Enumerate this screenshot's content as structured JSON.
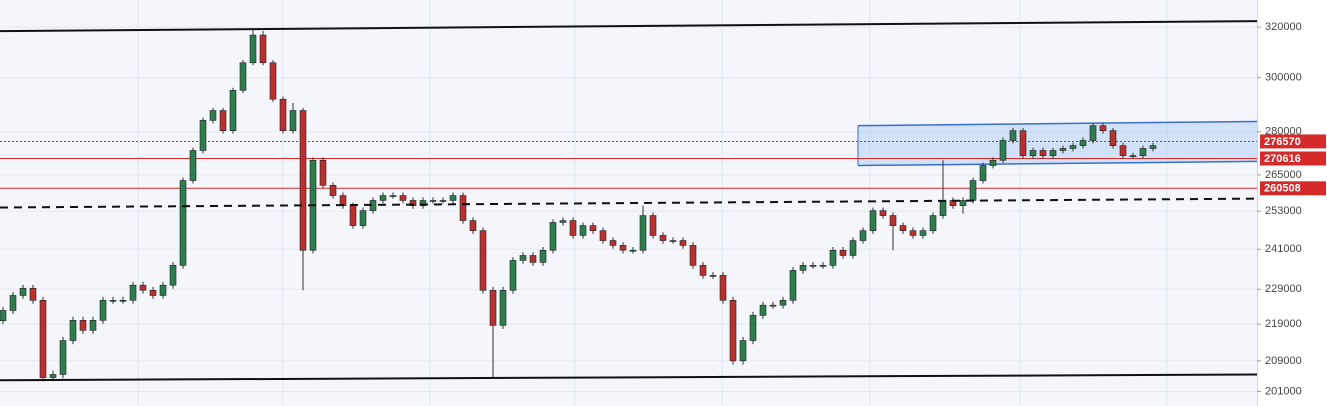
{
  "chart_data": {
    "type": "candlestick",
    "log_scale": true,
    "grid": true,
    "ylim": [
      197300,
      331300
    ],
    "yticks": [
      320000,
      300000,
      280000,
      265000,
      253000,
      241000,
      229000,
      219000,
      209000,
      201000
    ],
    "up_color": "#2e7d4f",
    "down_color": "#b8312f",
    "candles": [
      [
        220000,
        223900,
        219000,
        222900
      ],
      [
        222900,
        228200,
        221900,
        227200
      ],
      [
        227200,
        230300,
        226200,
        229300
      ],
      [
        229300,
        230300,
        224800,
        225800
      ],
      [
        225800,
        226800,
        203600,
        204600
      ],
      [
        204600,
        206400,
        203600,
        205400
      ],
      [
        205400,
        215500,
        204400,
        214500
      ],
      [
        214500,
        221100,
        213500,
        220100
      ],
      [
        220100,
        221100,
        216300,
        217300
      ],
      [
        217300,
        221100,
        216300,
        220100
      ],
      [
        220100,
        226800,
        219100,
        225800
      ],
      [
        225800,
        226800,
        224800,
        225800
      ],
      [
        225800,
        226800,
        224800,
        225800
      ],
      [
        225800,
        231200,
        224800,
        230200
      ],
      [
        230200,
        231200,
        227700,
        228700
      ],
      [
        228700,
        229700,
        226200,
        227200
      ],
      [
        227200,
        231200,
        226200,
        230200
      ],
      [
        230200,
        237100,
        229200,
        236100
      ],
      [
        236100,
        264100,
        235100,
        263100
      ],
      [
        263100,
        274400,
        262100,
        273400
      ],
      [
        273400,
        285100,
        272400,
        284100
      ],
      [
        284100,
        288700,
        283100,
        287700
      ],
      [
        287700,
        288700,
        279400,
        280400
      ],
      [
        280400,
        296200,
        279400,
        295200
      ],
      [
        295200,
        306800,
        294200,
        305800
      ],
      [
        305800,
        319000,
        304800,
        316800
      ],
      [
        316800,
        318500,
        304800,
        305800
      ],
      [
        305800,
        306800,
        290900,
        291900
      ],
      [
        291900,
        292900,
        279400,
        280400
      ],
      [
        280400,
        290500,
        279400,
        287700
      ],
      [
        287700,
        288700,
        228700,
        240700
      ],
      [
        240700,
        271000,
        239700,
        270000
      ],
      [
        270000,
        271000,
        260500,
        261500
      ],
      [
        261500,
        262500,
        257100,
        258100
      ],
      [
        258100,
        259100,
        253800,
        254800
      ],
      [
        254800,
        255800,
        247400,
        248400
      ],
      [
        248400,
        254200,
        247400,
        253200
      ],
      [
        253200,
        257500,
        252200,
        256500
      ],
      [
        256500,
        259100,
        255500,
        258100
      ],
      [
        258100,
        259100,
        257100,
        258100
      ],
      [
        258100,
        259100,
        255500,
        256500
      ],
      [
        256500,
        257500,
        253800,
        254800
      ],
      [
        254800,
        257500,
        253800,
        256500
      ],
      [
        256500,
        257500,
        255500,
        256500
      ],
      [
        256500,
        257500,
        255500,
        256500
      ],
      [
        256500,
        259100,
        255500,
        258100
      ],
      [
        258100,
        259100,
        249000,
        250000
      ],
      [
        250000,
        251000,
        245800,
        246800
      ],
      [
        246800,
        247800,
        227700,
        228700
      ],
      [
        228700,
        229700,
        204600,
        218700
      ],
      [
        218700,
        229700,
        217700,
        228700
      ],
      [
        228700,
        238600,
        227700,
        237600
      ],
      [
        237600,
        240100,
        236600,
        239100
      ],
      [
        239100,
        240100,
        236000,
        237000
      ],
      [
        237000,
        241700,
        236000,
        240700
      ],
      [
        240700,
        250400,
        239700,
        249400
      ],
      [
        249400,
        251000,
        248400,
        250000
      ],
      [
        250000,
        251000,
        244300,
        245300
      ],
      [
        245300,
        249400,
        244300,
        248400
      ],
      [
        248400,
        249400,
        245800,
        246800
      ],
      [
        246800,
        247800,
        242700,
        243700
      ],
      [
        243700,
        244700,
        241200,
        242200
      ],
      [
        242200,
        243200,
        239700,
        240700
      ],
      [
        240700,
        241700,
        239700,
        240700
      ],
      [
        240700,
        254800,
        239700,
        251600
      ],
      [
        251600,
        252600,
        244300,
        245300
      ],
      [
        245300,
        246300,
        242700,
        243700
      ],
      [
        243700,
        244700,
        242700,
        243700
      ],
      [
        243700,
        244700,
        241200,
        242200
      ],
      [
        242200,
        243200,
        235100,
        236100
      ],
      [
        236100,
        237100,
        232100,
        233100
      ],
      [
        233100,
        234100,
        232100,
        233100
      ],
      [
        233100,
        234100,
        224800,
        225800
      ],
      [
        225800,
        226800,
        208000,
        209000
      ],
      [
        209000,
        215500,
        208000,
        214500
      ],
      [
        214500,
        222500,
        213500,
        221500
      ],
      [
        221500,
        225400,
        220500,
        224400
      ],
      [
        224400,
        225400,
        223400,
        224400
      ],
      [
        224400,
        226800,
        223400,
        225800
      ],
      [
        225800,
        235600,
        224800,
        234600
      ],
      [
        234600,
        237100,
        233600,
        236100
      ],
      [
        236100,
        237100,
        235100,
        236100
      ],
      [
        236100,
        237100,
        235100,
        236100
      ],
      [
        236100,
        241700,
        235100,
        240700
      ],
      [
        240700,
        241700,
        238100,
        239100
      ],
      [
        239100,
        244700,
        238100,
        243700
      ],
      [
        243700,
        247800,
        242700,
        246800
      ],
      [
        246800,
        254200,
        245800,
        253200
      ],
      [
        253200,
        254200,
        250600,
        251600
      ],
      [
        251600,
        252600,
        240700,
        248400
      ],
      [
        248400,
        249400,
        245800,
        246800
      ],
      [
        246800,
        247800,
        244300,
        245300
      ],
      [
        245300,
        247800,
        244300,
        246800
      ],
      [
        246800,
        252600,
        245800,
        251600
      ],
      [
        251600,
        270000,
        250600,
        256500
      ],
      [
        256500,
        257500,
        253800,
        254800
      ],
      [
        254800,
        257500,
        252200,
        256500
      ],
      [
        256500,
        264100,
        255500,
        263100
      ],
      [
        263100,
        269200,
        262100,
        268200
      ],
      [
        268200,
        271000,
        267200,
        270000
      ],
      [
        270000,
        277900,
        269000,
        276900
      ],
      [
        276900,
        281400,
        275900,
        280400
      ],
      [
        280400,
        281400,
        270600,
        271600
      ],
      [
        271600,
        274400,
        270600,
        273400
      ],
      [
        273400,
        274400,
        270600,
        271600
      ],
      [
        271600,
        274400,
        270600,
        273400
      ],
      [
        273400,
        275100,
        272400,
        274100
      ],
      [
        274100,
        276100,
        273100,
        275100
      ],
      [
        275100,
        277900,
        274100,
        276900
      ],
      [
        276900,
        283200,
        275900,
        282200
      ],
      [
        282200,
        283200,
        279400,
        280400
      ],
      [
        280400,
        281400,
        274100,
        275100
      ],
      [
        275100,
        276100,
        270600,
        271600
      ],
      [
        271600,
        272600,
        270600,
        271600
      ],
      [
        271600,
        275100,
        270600,
        274100
      ],
      [
        274100,
        276100,
        273100,
        275100
      ]
    ],
    "price_lines": [
      {
        "value": 276570,
        "style": "dotted"
      },
      {
        "value": 270616,
        "style": "solid"
      },
      {
        "value": 260508,
        "style": "solid"
      }
    ],
    "trend_lines": [
      {
        "start": 318400,
        "end": 322500,
        "style": "solid"
      },
      {
        "start": 203900,
        "end": 205400,
        "style": "solid"
      },
      {
        "start": 254200,
        "end": 257100,
        "style": "dashed"
      }
    ],
    "channel": {
      "upper": [
        282200,
        283700
      ],
      "lower": [
        268200,
        269600
      ]
    }
  }
}
